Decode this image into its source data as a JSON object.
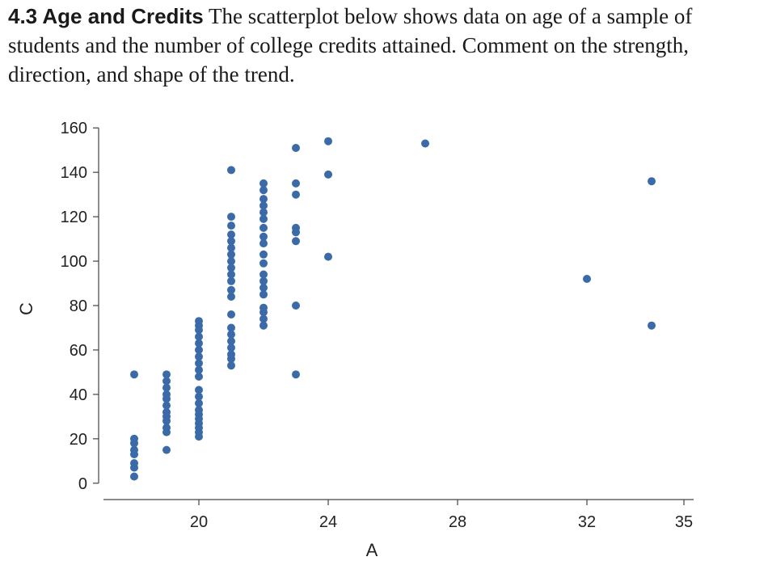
{
  "problem": {
    "title": "4.3 Age and Credits",
    "body": "The scatterplot below shows data on age of a sample of students and the number of college credits attained. Comment on the strength, direction, and shape of the trend."
  },
  "chart_data": {
    "type": "scatter",
    "xlabel": "A",
    "ylabel": "C",
    "xlim": [
      16.9,
      35.3
    ],
    "ylim": [
      -3,
      163
    ],
    "xticks": [
      20,
      24,
      28,
      32,
      35
    ],
    "yticks": [
      0,
      20,
      40,
      60,
      80,
      100,
      120,
      140,
      160
    ],
    "point_color": "#3a6aa8",
    "points": [
      [
        18,
        3
      ],
      [
        18,
        7
      ],
      [
        18,
        9
      ],
      [
        18,
        13
      ],
      [
        18,
        15
      ],
      [
        18,
        18
      ],
      [
        18,
        20
      ],
      [
        18,
        49
      ],
      [
        19,
        15
      ],
      [
        19,
        23
      ],
      [
        19,
        25
      ],
      [
        19,
        28
      ],
      [
        19,
        30
      ],
      [
        19,
        32
      ],
      [
        19,
        35
      ],
      [
        19,
        38
      ],
      [
        19,
        40
      ],
      [
        19,
        43
      ],
      [
        19,
        46
      ],
      [
        19,
        49
      ],
      [
        20,
        21
      ],
      [
        20,
        23
      ],
      [
        20,
        25
      ],
      [
        20,
        27
      ],
      [
        20,
        29
      ],
      [
        20,
        31
      ],
      [
        20,
        33
      ],
      [
        20,
        36
      ],
      [
        20,
        39
      ],
      [
        20,
        42
      ],
      [
        20,
        48
      ],
      [
        20,
        51
      ],
      [
        20,
        54
      ],
      [
        20,
        57
      ],
      [
        20,
        60
      ],
      [
        20,
        63
      ],
      [
        20,
        66
      ],
      [
        20,
        69
      ],
      [
        20,
        71
      ],
      [
        20,
        73
      ],
      [
        21,
        53
      ],
      [
        21,
        56
      ],
      [
        21,
        58
      ],
      [
        21,
        61
      ],
      [
        21,
        64
      ],
      [
        21,
        67
      ],
      [
        21,
        70
      ],
      [
        21,
        76
      ],
      [
        21,
        84
      ],
      [
        21,
        87
      ],
      [
        21,
        91
      ],
      [
        21,
        94
      ],
      [
        21,
        97
      ],
      [
        21,
        100
      ],
      [
        21,
        103
      ],
      [
        21,
        106
      ],
      [
        21,
        109
      ],
      [
        21,
        112
      ],
      [
        21,
        116
      ],
      [
        21,
        120
      ],
      [
        21,
        141
      ],
      [
        22,
        71
      ],
      [
        22,
        74
      ],
      [
        22,
        77
      ],
      [
        22,
        79
      ],
      [
        22,
        85
      ],
      [
        22,
        88
      ],
      [
        22,
        91
      ],
      [
        22,
        94
      ],
      [
        22,
        99
      ],
      [
        22,
        103
      ],
      [
        22,
        108
      ],
      [
        22,
        111
      ],
      [
        22,
        115
      ],
      [
        22,
        119
      ],
      [
        22,
        122
      ],
      [
        22,
        125
      ],
      [
        22,
        128
      ],
      [
        22,
        132
      ],
      [
        22,
        135
      ],
      [
        23,
        49
      ],
      [
        23,
        80
      ],
      [
        23,
        109
      ],
      [
        23,
        113
      ],
      [
        23,
        115
      ],
      [
        23,
        130
      ],
      [
        23,
        135
      ],
      [
        23,
        151
      ],
      [
        24,
        102
      ],
      [
        24,
        139
      ],
      [
        24,
        154
      ],
      [
        27,
        153
      ],
      [
        32,
        92
      ],
      [
        34,
        71
      ],
      [
        34,
        136
      ]
    ]
  }
}
